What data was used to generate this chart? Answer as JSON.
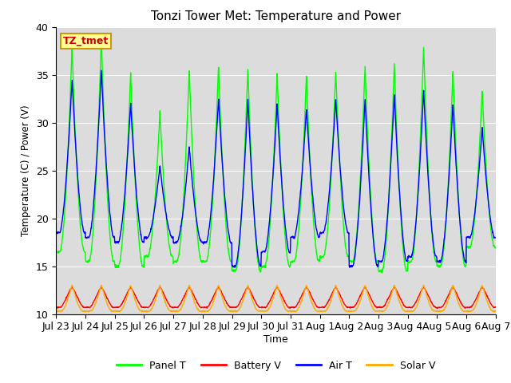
{
  "title": "Tonzi Tower Met: Temperature and Power",
  "xlabel": "Time",
  "ylabel": "Temperature (C) / Power (V)",
  "ylim": [
    10,
    40
  ],
  "bg_color": "#dcdcdc",
  "fig_color": "#ffffff",
  "annotation_text": "TZ_tmet",
  "annotation_color": "#cc0000",
  "annotation_bg": "#ffff99",
  "annotation_border": "#cc9900",
  "tick_labels": [
    "Jul 23",
    "Jul 24",
    "Jul 25",
    "Jul 26",
    "Jul 27",
    "Jul 28",
    "Jul 29",
    "Jul 30",
    "Jul 31",
    "Aug 1",
    "Aug 2",
    "Aug 3",
    "Aug 4",
    "Aug 5",
    "Aug 6",
    "Aug 7"
  ],
  "panel_t_color": "#00ff00",
  "battery_v_color": "#ff0000",
  "air_t_color": "#0000ff",
  "solar_v_color": "#ffaa00",
  "legend_labels": [
    "Panel T",
    "Battery V",
    "Air T",
    "Solar V"
  ],
  "panel_t_peaks": [
    38.0,
    39.0,
    35.3,
    31.2,
    35.5,
    36.0,
    35.8,
    35.2,
    35.0,
    35.5,
    36.0,
    36.2,
    38.0,
    35.5,
    33.5
  ],
  "panel_t_mins": [
    16.5,
    15.5,
    15.0,
    16.0,
    15.5,
    15.5,
    14.5,
    15.0,
    15.5,
    16.0,
    15.5,
    14.5,
    15.5,
    15.0,
    17.0
  ],
  "air_t_peaks": [
    34.5,
    35.5,
    32.0,
    25.5,
    27.5,
    32.5,
    32.5,
    32.0,
    31.5,
    32.5,
    32.5,
    33.0,
    33.5,
    32.0,
    29.5
  ],
  "air_t_mins": [
    18.5,
    18.0,
    17.5,
    18.0,
    17.5,
    17.5,
    15.0,
    16.5,
    18.0,
    18.5,
    15.0,
    15.5,
    16.0,
    15.5,
    18.0
  ],
  "batt_v_base": 10.7,
  "batt_v_peak": 12.8,
  "solar_v_base": 10.3,
  "solar_v_peak": 13.0,
  "hours_per_day": 24,
  "n_days": 15,
  "samples_per_hour": 4
}
